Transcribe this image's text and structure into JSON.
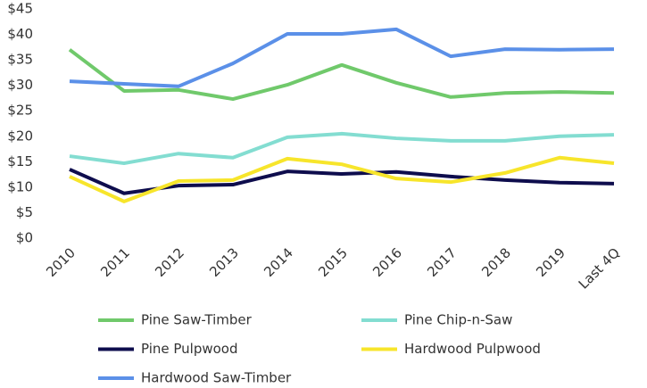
{
  "chart_data": {
    "type": "line",
    "categories": [
      "2010",
      "2011",
      "2012",
      "2013",
      "2014",
      "2015",
      "2016",
      "2017",
      "2018",
      "2019",
      "Last 4Q"
    ],
    "series": [
      {
        "name": "Pine Saw-Timber",
        "color": "#70c96b",
        "values": [
          37.0,
          28.9,
          29.1,
          27.3,
          30.1,
          34.0,
          30.5,
          27.7,
          28.5,
          28.7,
          28.5
        ]
      },
      {
        "name": "Pine Chip-n-Saw",
        "color": "#83ddd1",
        "values": [
          16.1,
          14.7,
          16.6,
          15.8,
          19.8,
          20.5,
          19.6,
          19.1,
          19.1,
          20.0,
          20.3
        ]
      },
      {
        "name": "Pine Pulpwood",
        "color": "#0e0d4d",
        "values": [
          13.5,
          8.8,
          10.3,
          10.5,
          13.1,
          12.6,
          13.0,
          12.1,
          11.4,
          10.9,
          10.7
        ]
      },
      {
        "name": "Hardwood Pulpwood",
        "color": "#f7e52b",
        "values": [
          12.1,
          7.2,
          11.2,
          11.4,
          15.6,
          14.5,
          11.7,
          11.0,
          12.8,
          15.8,
          14.7
        ]
      },
      {
        "name": "Hardwood Saw-Timber",
        "color": "#5b90e8",
        "values": [
          30.8,
          30.3,
          29.8,
          34.3,
          40.1,
          40.1,
          41.0,
          35.7,
          37.1,
          37.0,
          37.1
        ]
      }
    ],
    "ylim": [
      0,
      45
    ],
    "yticks": [
      {
        "value": 0,
        "label": "$0"
      },
      {
        "value": 5,
        "label": "$5"
      },
      {
        "value": 10,
        "label": "$10"
      },
      {
        "value": 15,
        "label": "$15"
      },
      {
        "value": 20,
        "label": "$20"
      },
      {
        "value": 25,
        "label": "$25"
      },
      {
        "value": 30,
        "label": "$30"
      },
      {
        "value": 35,
        "label": "$35"
      },
      {
        "value": 40,
        "label": "$40"
      },
      {
        "value": 45,
        "label": "$45"
      }
    ]
  }
}
